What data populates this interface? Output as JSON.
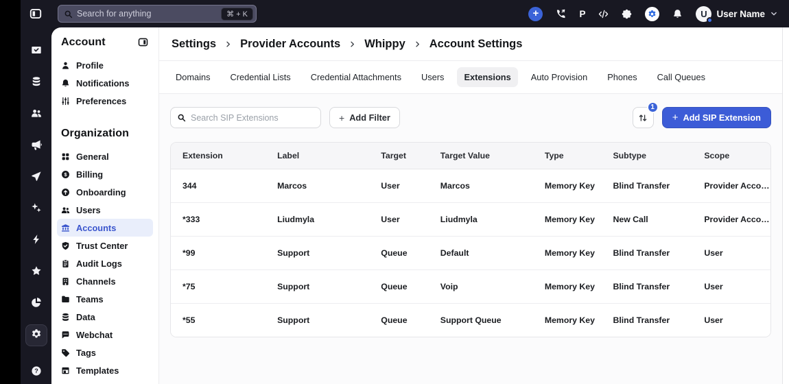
{
  "topbar": {
    "search": {
      "placeholder": "Search for anything",
      "shortcut": "⌘ + K"
    },
    "icons": [
      "plus-circle-icon",
      "phone-call-icon",
      "letter-p-icon",
      "code-icon",
      "puzzle-icon",
      "gear-circle-icon",
      "bell-icon"
    ],
    "user": {
      "name": "User Name",
      "avatar_initial": "U"
    }
  },
  "rail": {
    "items": [
      {
        "icon": "inbox-icon"
      },
      {
        "icon": "coins-icon"
      },
      {
        "icon": "contacts-icon"
      },
      {
        "icon": "megaphone-icon"
      },
      {
        "icon": "send-icon"
      },
      {
        "icon": "sparkles-icon"
      },
      {
        "icon": "bolt-icon"
      },
      {
        "icon": "star-icon"
      },
      {
        "icon": "pie-chart-icon"
      },
      {
        "icon": "gear-icon",
        "active": true
      },
      {
        "icon": "help-icon",
        "bottom": true
      }
    ]
  },
  "sidebar": {
    "sections": [
      {
        "title": "Account",
        "items": [
          {
            "label": "Profile",
            "icon": "person-icon"
          },
          {
            "label": "Notifications",
            "icon": "bell-icon"
          },
          {
            "label": "Preferences",
            "icon": "sliders-icon"
          }
        ]
      },
      {
        "title": "Organization",
        "items": [
          {
            "label": "General",
            "icon": "grid-icon"
          },
          {
            "label": "Billing",
            "icon": "dollar-circle-icon"
          },
          {
            "label": "Onboarding",
            "icon": "arrow-up-circle-icon"
          },
          {
            "label": "Users",
            "icon": "users-icon"
          },
          {
            "label": "Accounts",
            "icon": "bank-icon",
            "active": true
          },
          {
            "label": "Trust Center",
            "icon": "shield-check-icon"
          },
          {
            "label": "Audit Logs",
            "icon": "clipboard-icon"
          },
          {
            "label": "Channels",
            "icon": "building-icon"
          },
          {
            "label": "Teams",
            "icon": "folder-icon"
          },
          {
            "label": "Data",
            "icon": "database-icon"
          },
          {
            "label": "Webchat",
            "icon": "chat-bubble-icon"
          },
          {
            "label": "Tags",
            "icon": "tag-icon"
          },
          {
            "label": "Templates",
            "icon": "template-icon"
          }
        ]
      }
    ]
  },
  "breadcrumb": [
    "Settings",
    "Provider Accounts",
    "Whippy",
    "Account Settings"
  ],
  "tabs": [
    {
      "label": "Domains"
    },
    {
      "label": "Credential Lists"
    },
    {
      "label": "Credential Attachments"
    },
    {
      "label": "Users"
    },
    {
      "label": "Extensions",
      "active": true
    },
    {
      "label": "Auto Provision"
    },
    {
      "label": "Phones"
    },
    {
      "label": "Call Queues"
    }
  ],
  "toolbar": {
    "search_placeholder": "Search SIP Extensions",
    "plus_glyph": "+",
    "add_filter_label": "Add Filter",
    "sort_badge": "1",
    "add_extension_label": "Add SIP Extension"
  },
  "table": {
    "columns": [
      "Extension",
      "Label",
      "Target",
      "Target Value",
      "Type",
      "Subtype",
      "Scope"
    ],
    "rows": [
      [
        "344",
        "Marcos",
        "User",
        "Marcos",
        "Memory Key",
        "Blind Transfer",
        "Provider Account"
      ],
      [
        "*333",
        "Liudmyla",
        "User",
        "Liudmyla",
        "Memory Key",
        "New Call",
        "Provider Account"
      ],
      [
        "*99",
        "Support",
        "Queue",
        "Default",
        "Memory Key",
        "Blind Transfer",
        "User"
      ],
      [
        "*75",
        "Support",
        "Queue",
        "Voip",
        "Memory Key",
        "Blind Transfer",
        "User"
      ],
      [
        "*55",
        "Support",
        "Queue",
        "Support Queue",
        "Memory Key",
        "Blind Transfer",
        "User"
      ]
    ]
  },
  "colors": {
    "accent": "#3c5cd7",
    "accent_light": "#e9eefb",
    "topbar_bg": "#181822",
    "left_strip": "#000000",
    "table_header_bg": "#f6f6f8"
  }
}
